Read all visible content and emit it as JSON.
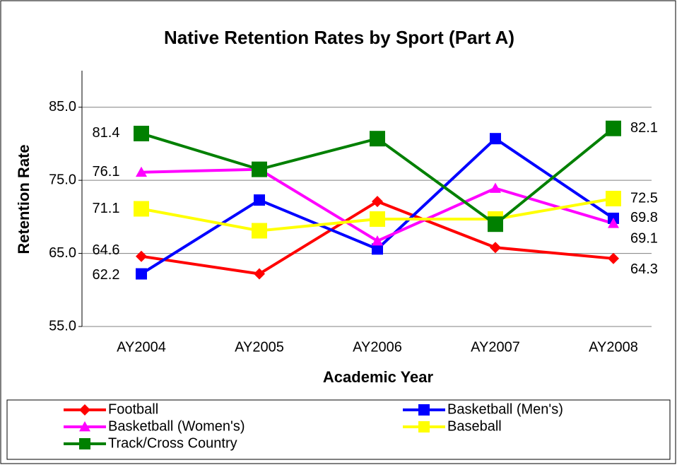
{
  "chart_data": {
    "type": "line",
    "title": "Native Retention Rates by Sport (Part A)",
    "x_label": "Academic Year",
    "y_label": "Retention Rate",
    "categories": [
      "AY2004",
      "AY2005",
      "AY2006",
      "AY2007",
      "AY2008"
    ],
    "ylim": [
      55,
      90
    ],
    "yticks": [
      {
        "value": 55,
        "label": "55.0"
      },
      {
        "value": 65,
        "label": "65.0"
      },
      {
        "value": 75,
        "label": "75.0"
      },
      {
        "value": 85,
        "label": "85.0"
      }
    ],
    "grid": true,
    "legend": "bottom",
    "series": [
      {
        "name": "Football",
        "color": "#ff0000",
        "marker": "diamond",
        "values": [
          64.6,
          62.2,
          72.1,
          65.8,
          64.3
        ],
        "value_labels": [
          "64.6",
          null,
          null,
          null,
          "64.3"
        ]
      },
      {
        "name": "Basketball (Men's)",
        "color": "#0000ff",
        "marker": "square",
        "values": [
          62.2,
          72.3,
          65.6,
          80.7,
          69.8
        ],
        "value_labels": [
          "62.2",
          null,
          null,
          null,
          "69.8"
        ]
      },
      {
        "name": "Basketball (Women's)",
        "color": "#ff00ff",
        "marker": "triangle",
        "values": [
          76.1,
          76.5,
          66.7,
          73.9,
          69.1
        ],
        "value_labels": [
          "76.1",
          null,
          null,
          null,
          "69.1"
        ]
      },
      {
        "name": "Baseball",
        "color": "#ffff00",
        "marker": "square",
        "values": [
          71.1,
          68.1,
          69.7,
          69.7,
          72.5
        ],
        "value_labels": [
          "71.1",
          null,
          null,
          null,
          "72.5"
        ]
      },
      {
        "name": "Track/Cross Country",
        "color": "#008000",
        "marker": "square",
        "values": [
          81.4,
          76.5,
          80.7,
          69.0,
          82.1
        ],
        "value_labels": [
          "81.4",
          null,
          null,
          null,
          "82.1"
        ]
      }
    ]
  }
}
